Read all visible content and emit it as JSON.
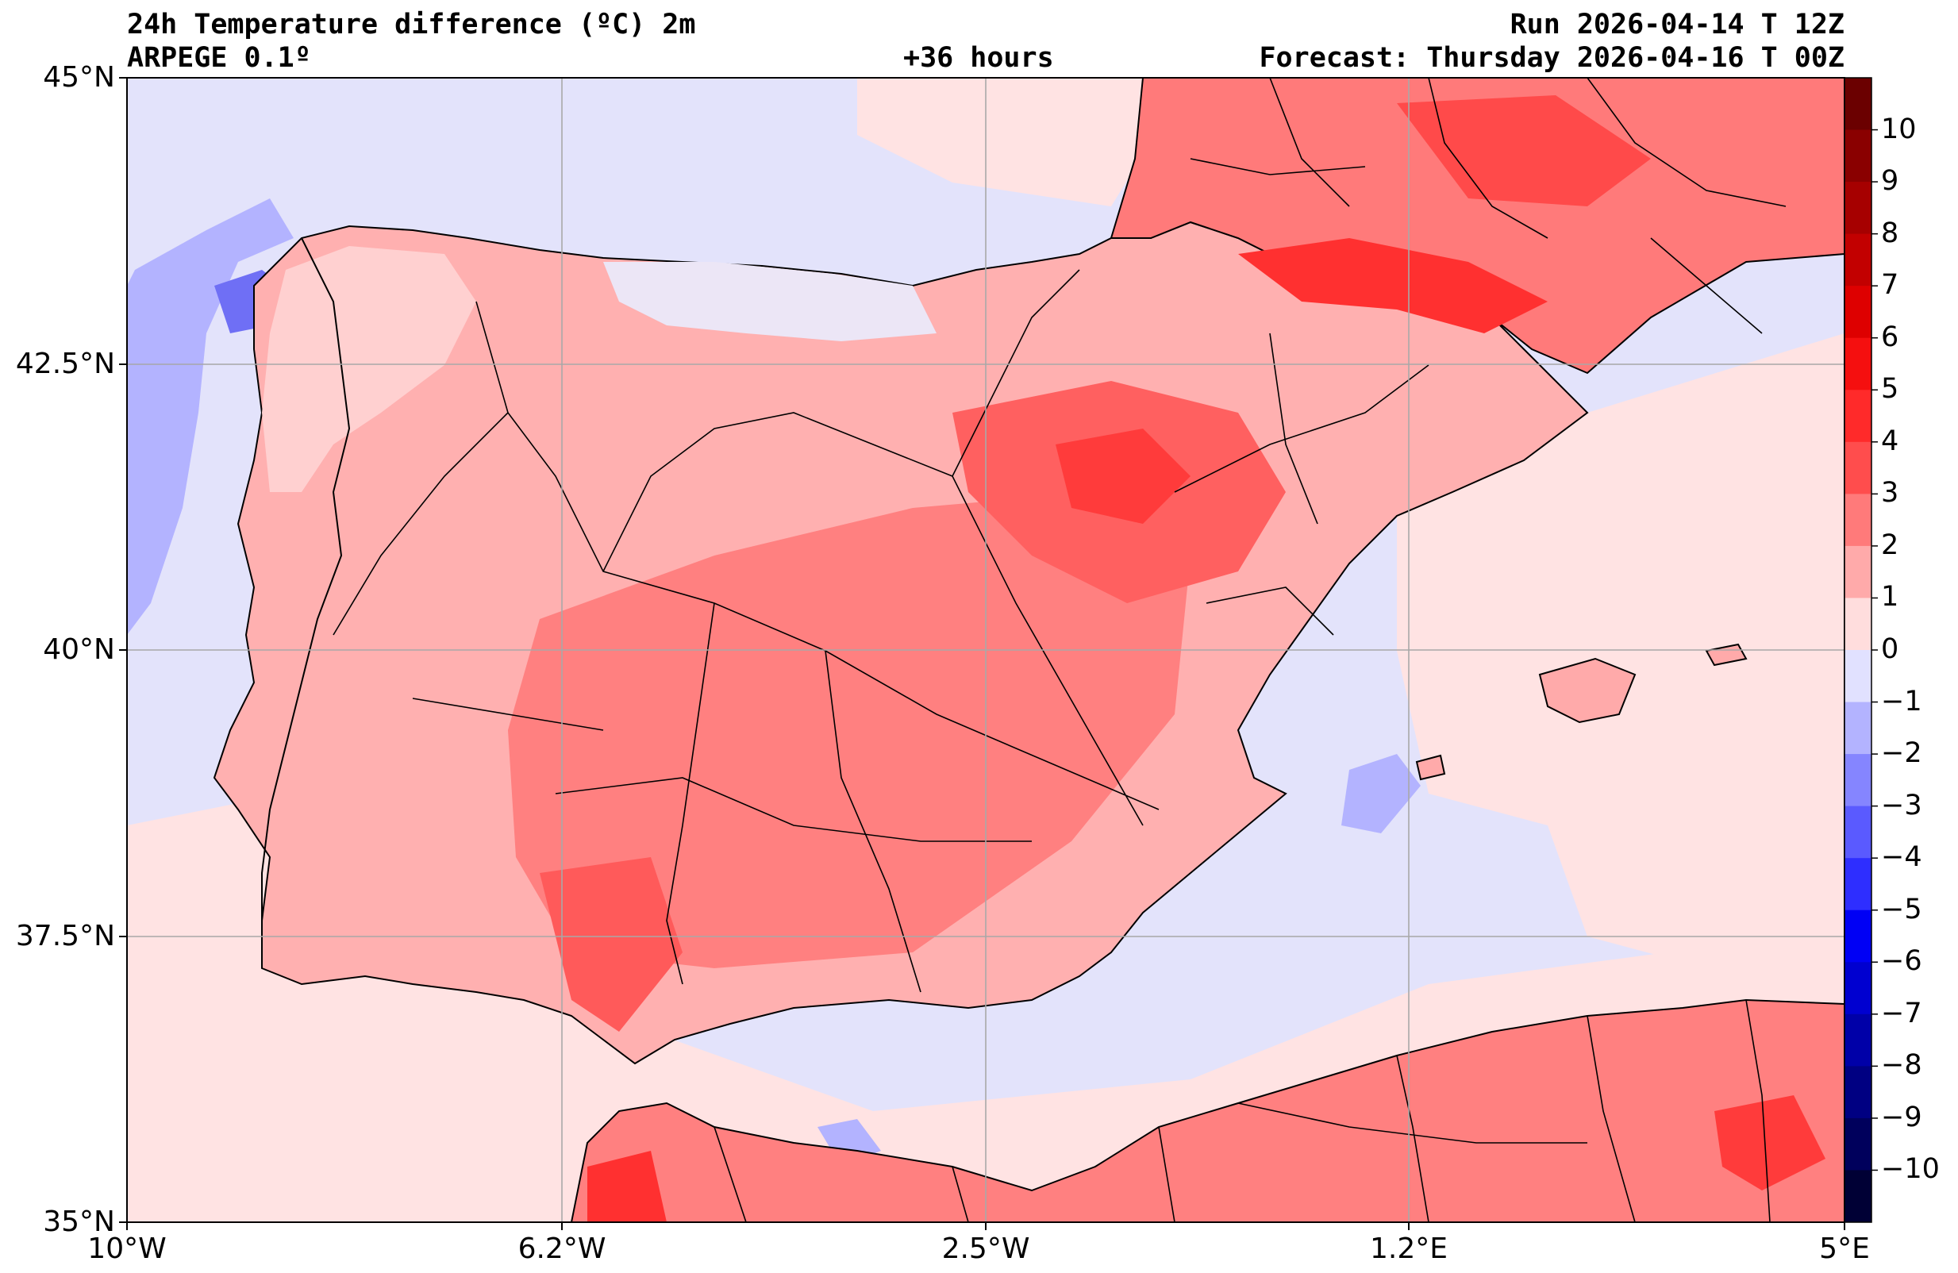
{
  "header": {
    "title": "24h Temperature difference (ºC) 2m",
    "model": "ARPEGE 0.1º",
    "lead": "+36 hours",
    "run": "Run 2026-04-14 T 12Z",
    "forecast": "Forecast: Thursday 2026-04-16 T 00Z"
  },
  "axes": {
    "lat_labels": [
      "45°N",
      "42.5°N",
      "40°N",
      "37.5°N",
      "35°N"
    ],
    "lon_labels": [
      "10°W",
      "6.2°W",
      "2.5°W",
      "1.2°E",
      "5°E"
    ]
  },
  "colorbar": {
    "labels": [
      "10",
      "9",
      "8",
      "7",
      "6",
      "5",
      "4",
      "3",
      "2",
      "1",
      "0",
      "−1",
      "−2",
      "−3",
      "−4",
      "−5",
      "−6",
      "−7",
      "−8",
      "−9",
      "−10"
    ],
    "colors": [
      "#6b0000",
      "#8a0000",
      "#a60000",
      "#c20000",
      "#de0000",
      "#f50f0f",
      "#ff2a2a",
      "#ff4d4d",
      "#ff7a7a",
      "#ffaaaa",
      "#ffdddd",
      "#e1e1ff",
      "#b3b3ff",
      "#8585ff",
      "#5a5aff",
      "#2e2eff",
      "#0000f5",
      "#0000d0",
      "#0000a8",
      "#000082",
      "#00005c",
      "#000035"
    ]
  },
  "map": {
    "extent": {
      "lon_min": -10,
      "lon_max": 5,
      "lat_min": 35,
      "lat_max": 45
    },
    "colors": {
      "sea_neutral": "#e3e3fb",
      "land_base": "#ff9c9c",
      "border": "#000000"
    }
  }
}
